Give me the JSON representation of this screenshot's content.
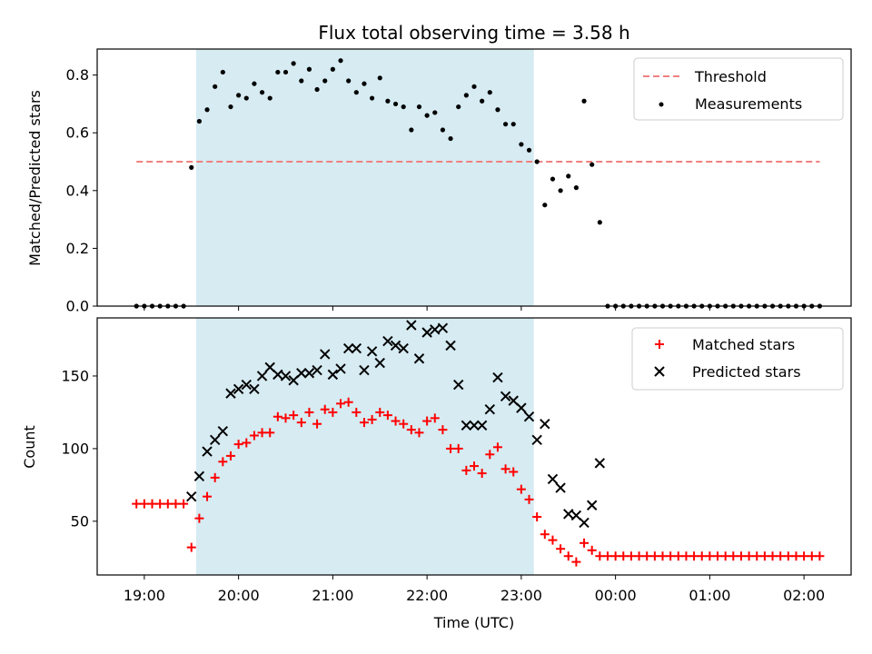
{
  "chart_data": [
    {
      "type": "scatter",
      "title": "Flux total observing time = 3.58 h",
      "xlabel": "",
      "ylabel": "Matched/Predicted stars",
      "x_range": [
        "18:30",
        "02:30"
      ],
      "ylim": [
        0,
        0.89
      ],
      "y_ticks": [
        "0.0",
        "0.2",
        "0.4",
        "0.6",
        "0.8"
      ],
      "shaded_interval": {
        "start": "19:33",
        "end": "23:08",
        "color": "#add8e6"
      },
      "threshold": {
        "name": "Threshold",
        "value": 0.5,
        "x_start": "18:55",
        "x_end": "02:10",
        "color": "#f08080",
        "style": "dashed"
      },
      "legend_position": "top-right",
      "series": [
        {
          "name": "Measurements",
          "color": "#000000",
          "marker": "dot",
          "points": [
            [
              "18:55",
              0.0
            ],
            [
              "19:00",
              0.0
            ],
            [
              "19:05",
              0.0
            ],
            [
              "19:10",
              0.0
            ],
            [
              "19:15",
              0.0
            ],
            [
              "19:20",
              0.0
            ],
            [
              "19:25",
              0.0
            ],
            [
              "19:30",
              0.48
            ],
            [
              "19:35",
              0.64
            ],
            [
              "19:40",
              0.68
            ],
            [
              "19:45",
              0.76
            ],
            [
              "19:50",
              0.81
            ],
            [
              "19:55",
              0.69
            ],
            [
              "20:00",
              0.73
            ],
            [
              "20:05",
              0.72
            ],
            [
              "20:10",
              0.77
            ],
            [
              "20:15",
              0.74
            ],
            [
              "20:20",
              0.72
            ],
            [
              "20:25",
              0.81
            ],
            [
              "20:30",
              0.81
            ],
            [
              "20:35",
              0.84
            ],
            [
              "20:40",
              0.78
            ],
            [
              "20:45",
              0.82
            ],
            [
              "20:50",
              0.75
            ],
            [
              "20:55",
              0.78
            ],
            [
              "21:00",
              0.82
            ],
            [
              "21:05",
              0.85
            ],
            [
              "21:10",
              0.78
            ],
            [
              "21:15",
              0.74
            ],
            [
              "21:20",
              0.77
            ],
            [
              "21:25",
              0.72
            ],
            [
              "21:30",
              0.79
            ],
            [
              "21:35",
              0.71
            ],
            [
              "21:40",
              0.7
            ],
            [
              "21:45",
              0.69
            ],
            [
              "21:50",
              0.61
            ],
            [
              "21:55",
              0.69
            ],
            [
              "22:00",
              0.66
            ],
            [
              "22:05",
              0.67
            ],
            [
              "22:10",
              0.61
            ],
            [
              "22:15",
              0.58
            ],
            [
              "22:20",
              0.69
            ],
            [
              "22:25",
              0.73
            ],
            [
              "22:30",
              0.76
            ],
            [
              "22:35",
              0.71
            ],
            [
              "22:40",
              0.74
            ],
            [
              "22:45",
              0.68
            ],
            [
              "22:50",
              0.63
            ],
            [
              "22:55",
              0.63
            ],
            [
              "23:00",
              0.56
            ],
            [
              "23:05",
              0.54
            ],
            [
              "23:10",
              0.5
            ],
            [
              "23:15",
              0.35
            ],
            [
              "23:20",
              0.44
            ],
            [
              "23:25",
              0.4
            ],
            [
              "23:30",
              0.45
            ],
            [
              "23:35",
              0.41
            ],
            [
              "23:40",
              0.71
            ],
            [
              "23:45",
              0.49
            ],
            [
              "23:50",
              0.29
            ],
            [
              "23:55",
              0.0
            ],
            [
              "00:00",
              0.0
            ],
            [
              "00:05",
              0.0
            ],
            [
              "00:10",
              0.0
            ],
            [
              "00:15",
              0.0
            ],
            [
              "00:20",
              0.0
            ],
            [
              "00:25",
              0.0
            ],
            [
              "00:30",
              0.0
            ],
            [
              "00:35",
              0.0
            ],
            [
              "00:40",
              0.0
            ],
            [
              "00:45",
              0.0
            ],
            [
              "00:50",
              0.0
            ],
            [
              "00:55",
              0.0
            ],
            [
              "01:00",
              0.0
            ],
            [
              "01:05",
              0.0
            ],
            [
              "01:10",
              0.0
            ],
            [
              "01:15",
              0.0
            ],
            [
              "01:20",
              0.0
            ],
            [
              "01:25",
              0.0
            ],
            [
              "01:30",
              0.0
            ],
            [
              "01:35",
              0.0
            ],
            [
              "01:40",
              0.0
            ],
            [
              "01:45",
              0.0
            ],
            [
              "01:50",
              0.0
            ],
            [
              "01:55",
              0.0
            ],
            [
              "02:00",
              0.0
            ],
            [
              "02:05",
              0.0
            ],
            [
              "02:10",
              0.0
            ]
          ]
        }
      ]
    },
    {
      "type": "scatter",
      "title": "",
      "xlabel": "Time (UTC)",
      "ylabel": "Count",
      "x_range": [
        "18:30",
        "02:30"
      ],
      "x_ticks": [
        "19:00",
        "20:00",
        "21:00",
        "22:00",
        "23:00",
        "00:00",
        "01:00",
        "02:00"
      ],
      "ylim": [
        13,
        190
      ],
      "y_ticks": [
        "50",
        "100",
        "150"
      ],
      "shaded_interval": {
        "start": "19:33",
        "end": "23:08",
        "color": "#add8e6"
      },
      "legend_position": "top-right",
      "series": [
        {
          "name": "Matched stars",
          "color": "#ff0000",
          "marker": "plus",
          "points": [
            [
              "18:55",
              62
            ],
            [
              "19:00",
              62
            ],
            [
              "19:05",
              62
            ],
            [
              "19:10",
              62
            ],
            [
              "19:15",
              62
            ],
            [
              "19:20",
              62
            ],
            [
              "19:25",
              62
            ],
            [
              "19:30",
              32
            ],
            [
              "19:35",
              52
            ],
            [
              "19:40",
              67
            ],
            [
              "19:45",
              80
            ],
            [
              "19:50",
              91
            ],
            [
              "19:55",
              95
            ],
            [
              "20:00",
              103
            ],
            [
              "20:05",
              104
            ],
            [
              "20:10",
              109
            ],
            [
              "20:15",
              111
            ],
            [
              "20:20",
              111
            ],
            [
              "20:25",
              122
            ],
            [
              "20:30",
              121
            ],
            [
              "20:35",
              123
            ],
            [
              "20:40",
              118
            ],
            [
              "20:45",
              125
            ],
            [
              "20:50",
              117
            ],
            [
              "20:55",
              127
            ],
            [
              "21:00",
              125
            ],
            [
              "21:05",
              131
            ],
            [
              "21:10",
              132
            ],
            [
              "21:15",
              125
            ],
            [
              "21:20",
              118
            ],
            [
              "21:25",
              120
            ],
            [
              "21:30",
              125
            ],
            [
              "21:35",
              123
            ],
            [
              "21:40",
              119
            ],
            [
              "21:45",
              117
            ],
            [
              "21:50",
              113
            ],
            [
              "21:55",
              111
            ],
            [
              "22:00",
              119
            ],
            [
              "22:05",
              121
            ],
            [
              "22:10",
              113
            ],
            [
              "22:15",
              100
            ],
            [
              "22:20",
              100
            ],
            [
              "22:25",
              85
            ],
            [
              "22:30",
              88
            ],
            [
              "22:35",
              83
            ],
            [
              "22:40",
              96
            ],
            [
              "22:45",
              101
            ],
            [
              "22:50",
              86
            ],
            [
              "22:55",
              84
            ],
            [
              "23:00",
              72
            ],
            [
              "23:05",
              65
            ],
            [
              "23:10",
              53
            ],
            [
              "23:15",
              41
            ],
            [
              "23:20",
              37
            ],
            [
              "23:25",
              31
            ],
            [
              "23:30",
              26
            ],
            [
              "23:35",
              22
            ],
            [
              "23:40",
              35
            ],
            [
              "23:45",
              30
            ],
            [
              "23:50",
              26
            ],
            [
              "23:55",
              26
            ],
            [
              "00:00",
              26
            ],
            [
              "00:05",
              26
            ],
            [
              "00:10",
              26
            ],
            [
              "00:15",
              26
            ],
            [
              "00:20",
              26
            ],
            [
              "00:25",
              26
            ],
            [
              "00:30",
              26
            ],
            [
              "00:35",
              26
            ],
            [
              "00:40",
              26
            ],
            [
              "00:45",
              26
            ],
            [
              "00:50",
              26
            ],
            [
              "00:55",
              26
            ],
            [
              "01:00",
              26
            ],
            [
              "01:05",
              26
            ],
            [
              "01:10",
              26
            ],
            [
              "01:15",
              26
            ],
            [
              "01:20",
              26
            ],
            [
              "01:25",
              26
            ],
            [
              "01:30",
              26
            ],
            [
              "01:35",
              26
            ],
            [
              "01:40",
              26
            ],
            [
              "01:45",
              26
            ],
            [
              "01:50",
              26
            ],
            [
              "01:55",
              26
            ],
            [
              "02:00",
              26
            ],
            [
              "02:05",
              26
            ],
            [
              "02:10",
              26
            ]
          ]
        },
        {
          "name": "Predicted stars",
          "color": "#000000",
          "marker": "x",
          "points": [
            [
              "19:30",
              67
            ],
            [
              "19:35",
              81
            ],
            [
              "19:40",
              98
            ],
            [
              "19:45",
              106
            ],
            [
              "19:50",
              112
            ],
            [
              "19:55",
              138
            ],
            [
              "20:00",
              141
            ],
            [
              "20:05",
              144
            ],
            [
              "20:10",
              141
            ],
            [
              "20:15",
              150
            ],
            [
              "20:20",
              156
            ],
            [
              "20:25",
              151
            ],
            [
              "20:30",
              150
            ],
            [
              "20:35",
              147
            ],
            [
              "20:40",
              152
            ],
            [
              "20:45",
              152
            ],
            [
              "20:50",
              154
            ],
            [
              "20:55",
              165
            ],
            [
              "21:00",
              151
            ],
            [
              "21:05",
              155
            ],
            [
              "21:10",
              169
            ],
            [
              "21:15",
              169
            ],
            [
              "21:20",
              154
            ],
            [
              "21:25",
              167
            ],
            [
              "21:30",
              159
            ],
            [
              "21:35",
              174
            ],
            [
              "21:40",
              171
            ],
            [
              "21:45",
              169
            ],
            [
              "21:50",
              185
            ],
            [
              "21:55",
              162
            ],
            [
              "22:00",
              180
            ],
            [
              "22:05",
              182
            ],
            [
              "22:10",
              183
            ],
            [
              "22:15",
              171
            ],
            [
              "22:20",
              144
            ],
            [
              "22:25",
              116
            ],
            [
              "22:30",
              116
            ],
            [
              "22:35",
              116
            ],
            [
              "22:40",
              127
            ],
            [
              "22:45",
              149
            ],
            [
              "22:50",
              136
            ],
            [
              "22:55",
              133
            ],
            [
              "23:00",
              128
            ],
            [
              "23:05",
              122
            ],
            [
              "23:10",
              106
            ],
            [
              "23:15",
              117
            ],
            [
              "23:20",
              79
            ],
            [
              "23:25",
              73
            ],
            [
              "23:30",
              55
            ],
            [
              "23:35",
              54
            ],
            [
              "23:40",
              49
            ],
            [
              "23:45",
              61
            ],
            [
              "23:50",
              90
            ]
          ]
        }
      ]
    }
  ]
}
